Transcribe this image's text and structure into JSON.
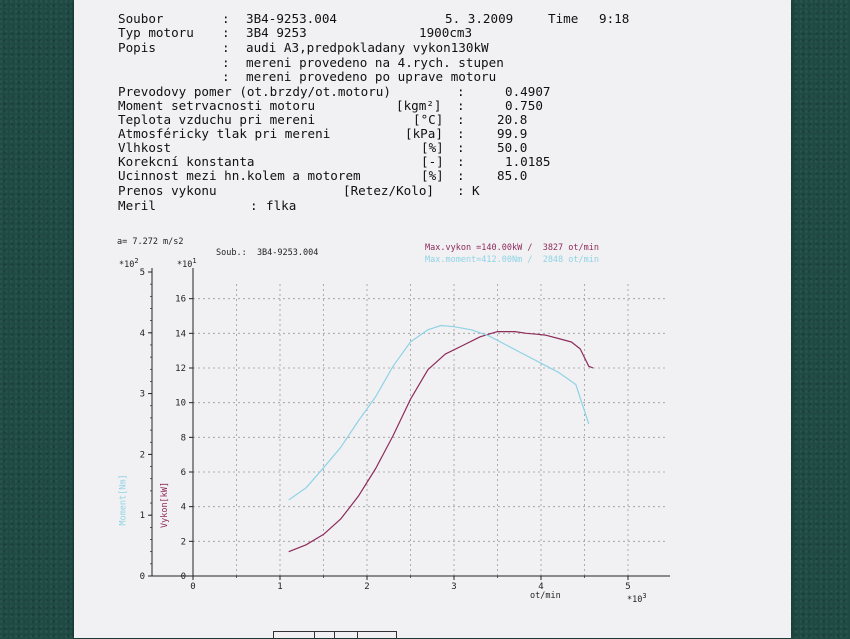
{
  "header": {
    "soubor_label": "Soubor",
    "soubor_value": "3B4-9253.004",
    "date": "5. 3.2009",
    "time_label": "Time",
    "time_value": "9:18",
    "typ_label": "Typ motoru",
    "typ_value": "3B4 9253",
    "volume": "1900cm3",
    "popis_label": "Popis",
    "popis_lines": [
      "audi A3,predpokladany vykon130kW",
      "mereni provedeno na 4.rych. stupen",
      "mereni provedeno po uprave motoru"
    ],
    "params": [
      {
        "label": "Prevodovy pomer (ot.brzdy/ot.motoru)",
        "unit": "",
        "value": "0.4907"
      },
      {
        "label": "Moment setrvacnosti motoru",
        "unit": "[kgm²]",
        "value": "0.750"
      },
      {
        "label": "Teplota vzduchu pri mereni",
        "unit": "[°C]",
        "value": "20.8"
      },
      {
        "label": "Atmosféricky tlak pri mereni",
        "unit": "[kPa]",
        "value": "99.9"
      },
      {
        "label": "Vlhkost",
        "unit": "[%]",
        "value": "50.0"
      },
      {
        "label": "Korekcní konstanta",
        "unit": "[-]",
        "value": "1.0185"
      },
      {
        "label": "Ucinnost mezi hn.kolem a motorem",
        "unit": "[%]",
        "value": "85.0"
      }
    ],
    "prenos_label": "Prenos vykonu",
    "prenos_unit": "[Retez/Kolo]",
    "prenos_value": "K",
    "meril_label": "Meril",
    "meril_value": "flka"
  },
  "colors": {
    "power": "#8e2a5c",
    "torque": "#8fd3e6",
    "grid": "#9a9a9a",
    "axis": "#222222"
  },
  "chart_data": {
    "type": "line",
    "accel": "a= 7.272 m/s2",
    "soub": "Soub.:  3B4-9253.004",
    "left_exp": "*10",
    "left_exp_power": "2",
    "right_exp": "*10",
    "right_exp_power": "1",
    "x_exp": "*10",
    "x_exp_power": "3",
    "xlabel": "ot/min",
    "ylabel_left": "Moment[Nm]",
    "ylabel_right": "Vykon[kW]",
    "max_power_text": "Max.vykon =140.00kW /  3827 ot/min",
    "max_torque_text": "Max.moment=412.00Nm /  2848 ot/min",
    "xlim": [
      0,
      5.4
    ],
    "x_ticks": [
      "0",
      "1",
      "2",
      "3",
      "4",
      "5"
    ],
    "ylim_torque": [
      0,
      5
    ],
    "torque_ticks": [
      "0",
      "1",
      "2",
      "3",
      "4",
      "5"
    ],
    "ylim_power": [
      0,
      18
    ],
    "power_ticks": [
      "0",
      "2",
      "4",
      "6",
      "8",
      "10",
      "12",
      "14",
      "16"
    ],
    "series": [
      {
        "name": "Vykon[kW]",
        "axis": "power",
        "x": [
          1.1,
          1.3,
          1.5,
          1.7,
          1.9,
          2.1,
          2.3,
          2.5,
          2.7,
          2.9,
          3.1,
          3.3,
          3.5,
          3.7,
          3.83,
          3.95,
          4.05,
          4.2,
          4.35,
          4.45,
          4.5,
          4.55,
          4.6
        ],
        "y": [
          1.4,
          1.8,
          2.4,
          3.3,
          4.6,
          6.2,
          8.1,
          10.2,
          11.9,
          12.8,
          13.3,
          13.8,
          14.1,
          14.1,
          14.0,
          13.95,
          13.9,
          13.7,
          13.5,
          13.1,
          12.6,
          12.1,
          12.0
        ]
      },
      {
        "name": "Moment[Nm]",
        "axis": "torque",
        "x": [
          1.1,
          1.3,
          1.5,
          1.7,
          1.9,
          2.1,
          2.3,
          2.5,
          2.7,
          2.85,
          3.0,
          3.2,
          3.4,
          3.6,
          3.8,
          4.0,
          4.2,
          4.4,
          4.55
        ],
        "y": [
          1.25,
          1.45,
          1.78,
          2.12,
          2.55,
          2.95,
          3.45,
          3.85,
          4.05,
          4.12,
          4.1,
          4.05,
          3.95,
          3.8,
          3.65,
          3.5,
          3.35,
          3.15,
          2.5
        ]
      }
    ]
  }
}
